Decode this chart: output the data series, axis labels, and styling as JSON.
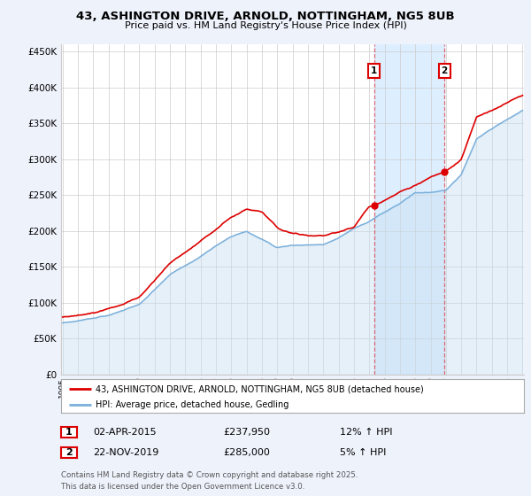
{
  "title_line1": "43, ASHINGTON DRIVE, ARNOLD, NOTTINGHAM, NG5 8UB",
  "title_line2": "Price paid vs. HM Land Registry's House Price Index (HPI)",
  "ylim": [
    0,
    460000
  ],
  "yticks": [
    0,
    50000,
    100000,
    150000,
    200000,
    250000,
    300000,
    350000,
    400000,
    450000
  ],
  "ytick_labels": [
    "£0",
    "£50K",
    "£100K",
    "£150K",
    "£200K",
    "£250K",
    "£300K",
    "£350K",
    "£400K",
    "£450K"
  ],
  "background_color": "#eef2fb",
  "plot_bg_color": "#ffffff",
  "grid_color": "#cccccc",
  "red_line_color": "#dd0000",
  "blue_line_color": "#7aafdb",
  "blue_fill_color": "#c8dff0",
  "highlight_region_color": "#ddeeff",
  "legend_label_red": "43, ASHINGTON DRIVE, ARNOLD, NOTTINGHAM, NG5 8UB (detached house)",
  "legend_label_blue": "HPI: Average price, detached house, Gedling",
  "purchase1_date": "02-APR-2015",
  "purchase1_price": "£237,950",
  "purchase1_hpi": "12% ↑ HPI",
  "purchase2_date": "22-NOV-2019",
  "purchase2_price": "£285,000",
  "purchase2_hpi": "5% ↑ HPI",
  "footer": "Contains HM Land Registry data © Crown copyright and database right 2025.\nThis data is licensed under the Open Government Licence v3.0.",
  "start_year": 1995,
  "end_year": 2025,
  "blue_anchors_t": [
    1995,
    1997,
    1998,
    2000,
    2002,
    2004,
    2006,
    2007,
    2009,
    2010,
    2012,
    2013,
    2014,
    2015,
    2016,
    2017,
    2018,
    2019,
    2020,
    2021,
    2022,
    2023,
    2024,
    2025
  ],
  "blue_anchors_v": [
    72000,
    79000,
    84000,
    98000,
    140000,
    165000,
    192000,
    200000,
    178000,
    182000,
    183000,
    192000,
    205000,
    215000,
    228000,
    240000,
    255000,
    255000,
    258000,
    280000,
    330000,
    345000,
    358000,
    370000
  ],
  "red_anchors_t": [
    1995,
    1997,
    1998,
    2000,
    2002,
    2004,
    2006,
    2007,
    2008,
    2009,
    2010,
    2011,
    2012,
    2013,
    2014,
    2015,
    2016,
    2017,
    2018,
    2019,
    2020,
    2021,
    2022,
    2023,
    2024,
    2025
  ],
  "red_anchors_v": [
    80000,
    86000,
    92000,
    107000,
    155000,
    188000,
    220000,
    232000,
    228000,
    208000,
    200000,
    198000,
    197000,
    202000,
    210000,
    238000,
    247000,
    258000,
    268000,
    278000,
    286000,
    303000,
    362000,
    372000,
    382000,
    392000
  ],
  "marker1_year": 2015.25,
  "marker2_year": 2019.9
}
